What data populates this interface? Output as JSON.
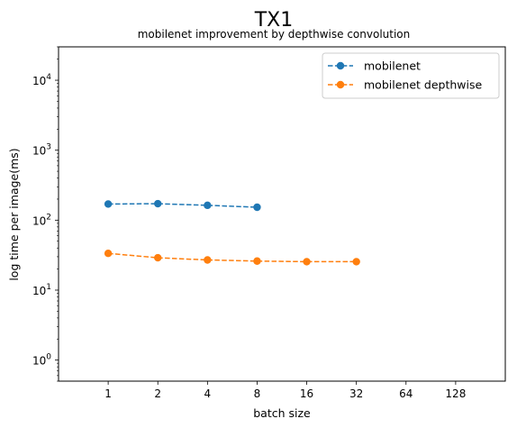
{
  "chart_data": {
    "type": "line",
    "title": "TX1",
    "subtitle": "mobilenet improvement by depthwise convolution",
    "xlabel": "batch size",
    "ylabel": "log time per image(ms)",
    "x_scale": "log2",
    "y_scale": "log10",
    "x_ticks": [
      1,
      2,
      4,
      8,
      16,
      32,
      64,
      128
    ],
    "y_ticks": [
      {
        "value": 1,
        "base": "10",
        "exp": "0"
      },
      {
        "value": 10,
        "base": "10",
        "exp": "1"
      },
      {
        "value": 100,
        "base": "10",
        "exp": "2"
      },
      {
        "value": 1000,
        "base": "10",
        "exp": "3"
      },
      {
        "value": 10000,
        "base": "10",
        "exp": "4"
      }
    ],
    "xlim": [
      0.5,
      256
    ],
    "ylim": [
      0.5,
      30000
    ],
    "grid": false,
    "legend_position": "upper right",
    "series": [
      {
        "name": "mobilenet",
        "color": "#1f77b4",
        "x": [
          1,
          2,
          4,
          8
        ],
        "y": [
          170,
          172,
          163,
          153
        ]
      },
      {
        "name": "mobilenet depthwise",
        "color": "#ff7f0e",
        "x": [
          1,
          2,
          4,
          8,
          16,
          32
        ],
        "y": [
          33.5,
          29,
          27,
          26,
          25.5,
          25.5
        ]
      }
    ]
  }
}
